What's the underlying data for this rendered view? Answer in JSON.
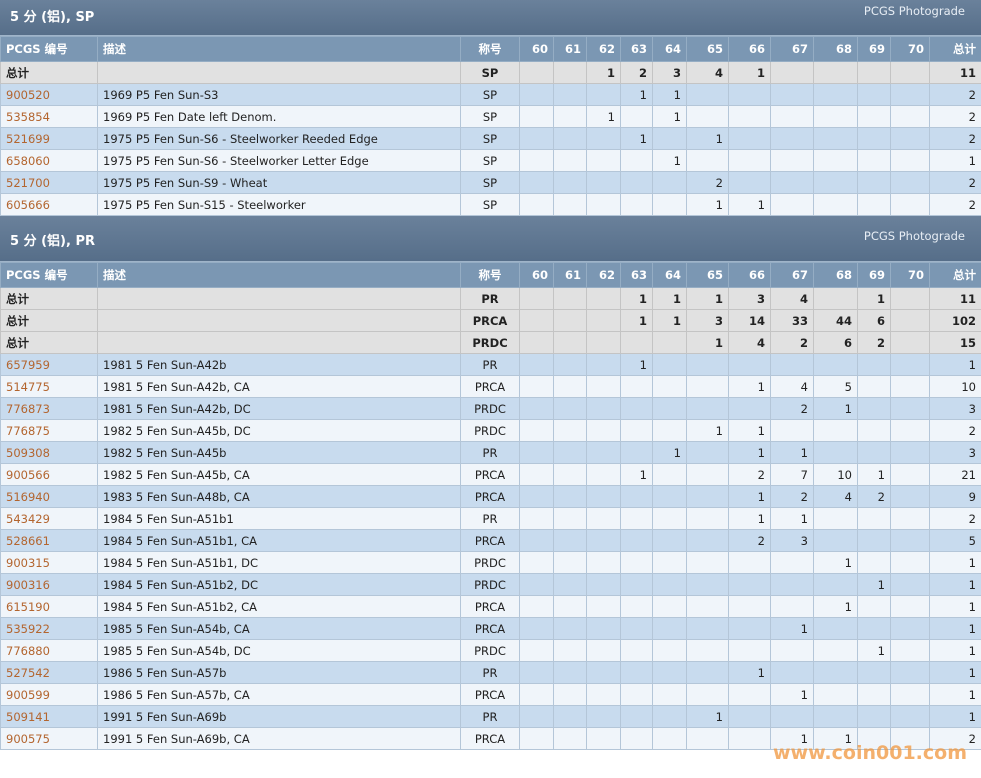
{
  "sections": [
    {
      "title": "5 分 (铝), SP",
      "badge": "PCGS Photograde",
      "header": [
        "PCGS 编号",
        "描述",
        "称号",
        "60",
        "61",
        "62",
        "63",
        "64",
        "65",
        "66",
        "67",
        "68",
        "69",
        "70",
        "总计"
      ],
      "totals": [
        [
          "总计",
          null,
          "SP",
          null,
          null,
          1,
          2,
          3,
          4,
          1,
          null,
          null,
          null,
          null,
          11
        ]
      ],
      "rows": [
        [
          "900520",
          "1969 P5 Fen Sun-S3",
          "SP",
          null,
          null,
          null,
          1,
          1,
          null,
          null,
          null,
          null,
          null,
          null,
          2
        ],
        [
          "535854",
          "1969 P5 Fen Date left Denom.",
          "SP",
          null,
          null,
          1,
          null,
          1,
          null,
          null,
          null,
          null,
          null,
          null,
          2
        ],
        [
          "521699",
          "1975 P5 Fen Sun-S6 - Steelworker Reeded Edge",
          "SP",
          null,
          null,
          null,
          1,
          null,
          1,
          null,
          null,
          null,
          null,
          null,
          2
        ],
        [
          "658060",
          "1975 P5 Fen Sun-S6 - Steelworker Letter Edge",
          "SP",
          null,
          null,
          null,
          null,
          1,
          null,
          null,
          null,
          null,
          null,
          null,
          1
        ],
        [
          "521700",
          "1975 P5 Fen Sun-S9 - Wheat",
          "SP",
          null,
          null,
          null,
          null,
          null,
          2,
          null,
          null,
          null,
          null,
          null,
          2
        ],
        [
          "605666",
          "1975 P5 Fen Sun-S15 - Steelworker",
          "SP",
          null,
          null,
          null,
          null,
          null,
          1,
          1,
          null,
          null,
          null,
          null,
          2
        ]
      ]
    },
    {
      "title": "5 分 (铝), PR",
      "badge": "PCGS Photograde",
      "header": [
        "PCGS 编号",
        "描述",
        "称号",
        "60",
        "61",
        "62",
        "63",
        "64",
        "65",
        "66",
        "67",
        "68",
        "69",
        "70",
        "总计"
      ],
      "totals": [
        [
          "总计",
          null,
          "PR",
          null,
          null,
          null,
          1,
          1,
          1,
          3,
          4,
          null,
          1,
          null,
          11
        ],
        [
          "总计",
          null,
          "PRCA",
          null,
          null,
          null,
          1,
          1,
          3,
          14,
          33,
          44,
          6,
          null,
          102
        ],
        [
          "总计",
          null,
          "PRDC",
          null,
          null,
          null,
          null,
          null,
          1,
          4,
          2,
          6,
          2,
          null,
          15
        ]
      ],
      "rows": [
        [
          "657959",
          "1981 5 Fen Sun-A42b",
          "PR",
          null,
          null,
          null,
          1,
          null,
          null,
          null,
          null,
          null,
          null,
          null,
          1
        ],
        [
          "514775",
          "1981 5 Fen Sun-A42b, CA",
          "PRCA",
          null,
          null,
          null,
          null,
          null,
          null,
          1,
          4,
          5,
          null,
          null,
          10
        ],
        [
          "776873",
          "1981 5 Fen Sun-A42b, DC",
          "PRDC",
          null,
          null,
          null,
          null,
          null,
          null,
          null,
          2,
          1,
          null,
          null,
          3
        ],
        [
          "776875",
          "1982 5 Fen Sun-A45b, DC",
          "PRDC",
          null,
          null,
          null,
          null,
          null,
          1,
          1,
          null,
          null,
          null,
          null,
          2
        ],
        [
          "509308",
          "1982 5 Fen Sun-A45b",
          "PR",
          null,
          null,
          null,
          null,
          1,
          null,
          1,
          1,
          null,
          null,
          null,
          3
        ],
        [
          "900566",
          "1982 5 Fen Sun-A45b, CA",
          "PRCA",
          null,
          null,
          null,
          1,
          null,
          null,
          2,
          7,
          10,
          1,
          null,
          21
        ],
        [
          "516940",
          "1983 5 Fen Sun-A48b, CA",
          "PRCA",
          null,
          null,
          null,
          null,
          null,
          null,
          1,
          2,
          4,
          2,
          null,
          9
        ],
        [
          "543429",
          "1984 5 Fen Sun-A51b1",
          "PR",
          null,
          null,
          null,
          null,
          null,
          null,
          1,
          1,
          null,
          null,
          null,
          2
        ],
        [
          "528661",
          "1984 5 Fen Sun-A51b1, CA",
          "PRCA",
          null,
          null,
          null,
          null,
          null,
          null,
          2,
          3,
          null,
          null,
          null,
          5
        ],
        [
          "900315",
          "1984 5 Fen Sun-A51b1, DC",
          "PRDC",
          null,
          null,
          null,
          null,
          null,
          null,
          null,
          null,
          1,
          null,
          null,
          1
        ],
        [
          "900316",
          "1984 5 Fen Sun-A51b2, DC",
          "PRDC",
          null,
          null,
          null,
          null,
          null,
          null,
          null,
          null,
          null,
          1,
          null,
          1
        ],
        [
          "615190",
          "1984 5 Fen Sun-A51b2, CA",
          "PRCA",
          null,
          null,
          null,
          null,
          null,
          null,
          null,
          null,
          1,
          null,
          null,
          1
        ],
        [
          "535922",
          "1985 5 Fen Sun-A54b, CA",
          "PRCA",
          null,
          null,
          null,
          null,
          null,
          null,
          null,
          1,
          null,
          null,
          null,
          1
        ],
        [
          "776880",
          "1985 5 Fen Sun-A54b, DC",
          "PRDC",
          null,
          null,
          null,
          null,
          null,
          null,
          null,
          null,
          null,
          1,
          null,
          1
        ],
        [
          "527542",
          "1986 5 Fen Sun-A57b",
          "PR",
          null,
          null,
          null,
          null,
          null,
          null,
          1,
          null,
          null,
          null,
          null,
          1
        ],
        [
          "900599",
          "1986 5 Fen Sun-A57b, CA",
          "PRCA",
          null,
          null,
          null,
          null,
          null,
          null,
          null,
          1,
          null,
          null,
          null,
          1
        ],
        [
          "509141",
          "1991 5 Fen Sun-A69b",
          "PR",
          null,
          null,
          null,
          null,
          null,
          1,
          null,
          null,
          null,
          null,
          null,
          1
        ],
        [
          "900575",
          "1991 5 Fen Sun-A69b, CA",
          "PRCA",
          null,
          null,
          null,
          null,
          null,
          null,
          null,
          1,
          1,
          null,
          null,
          2
        ]
      ]
    }
  ],
  "watermark": "www.coin001.com"
}
